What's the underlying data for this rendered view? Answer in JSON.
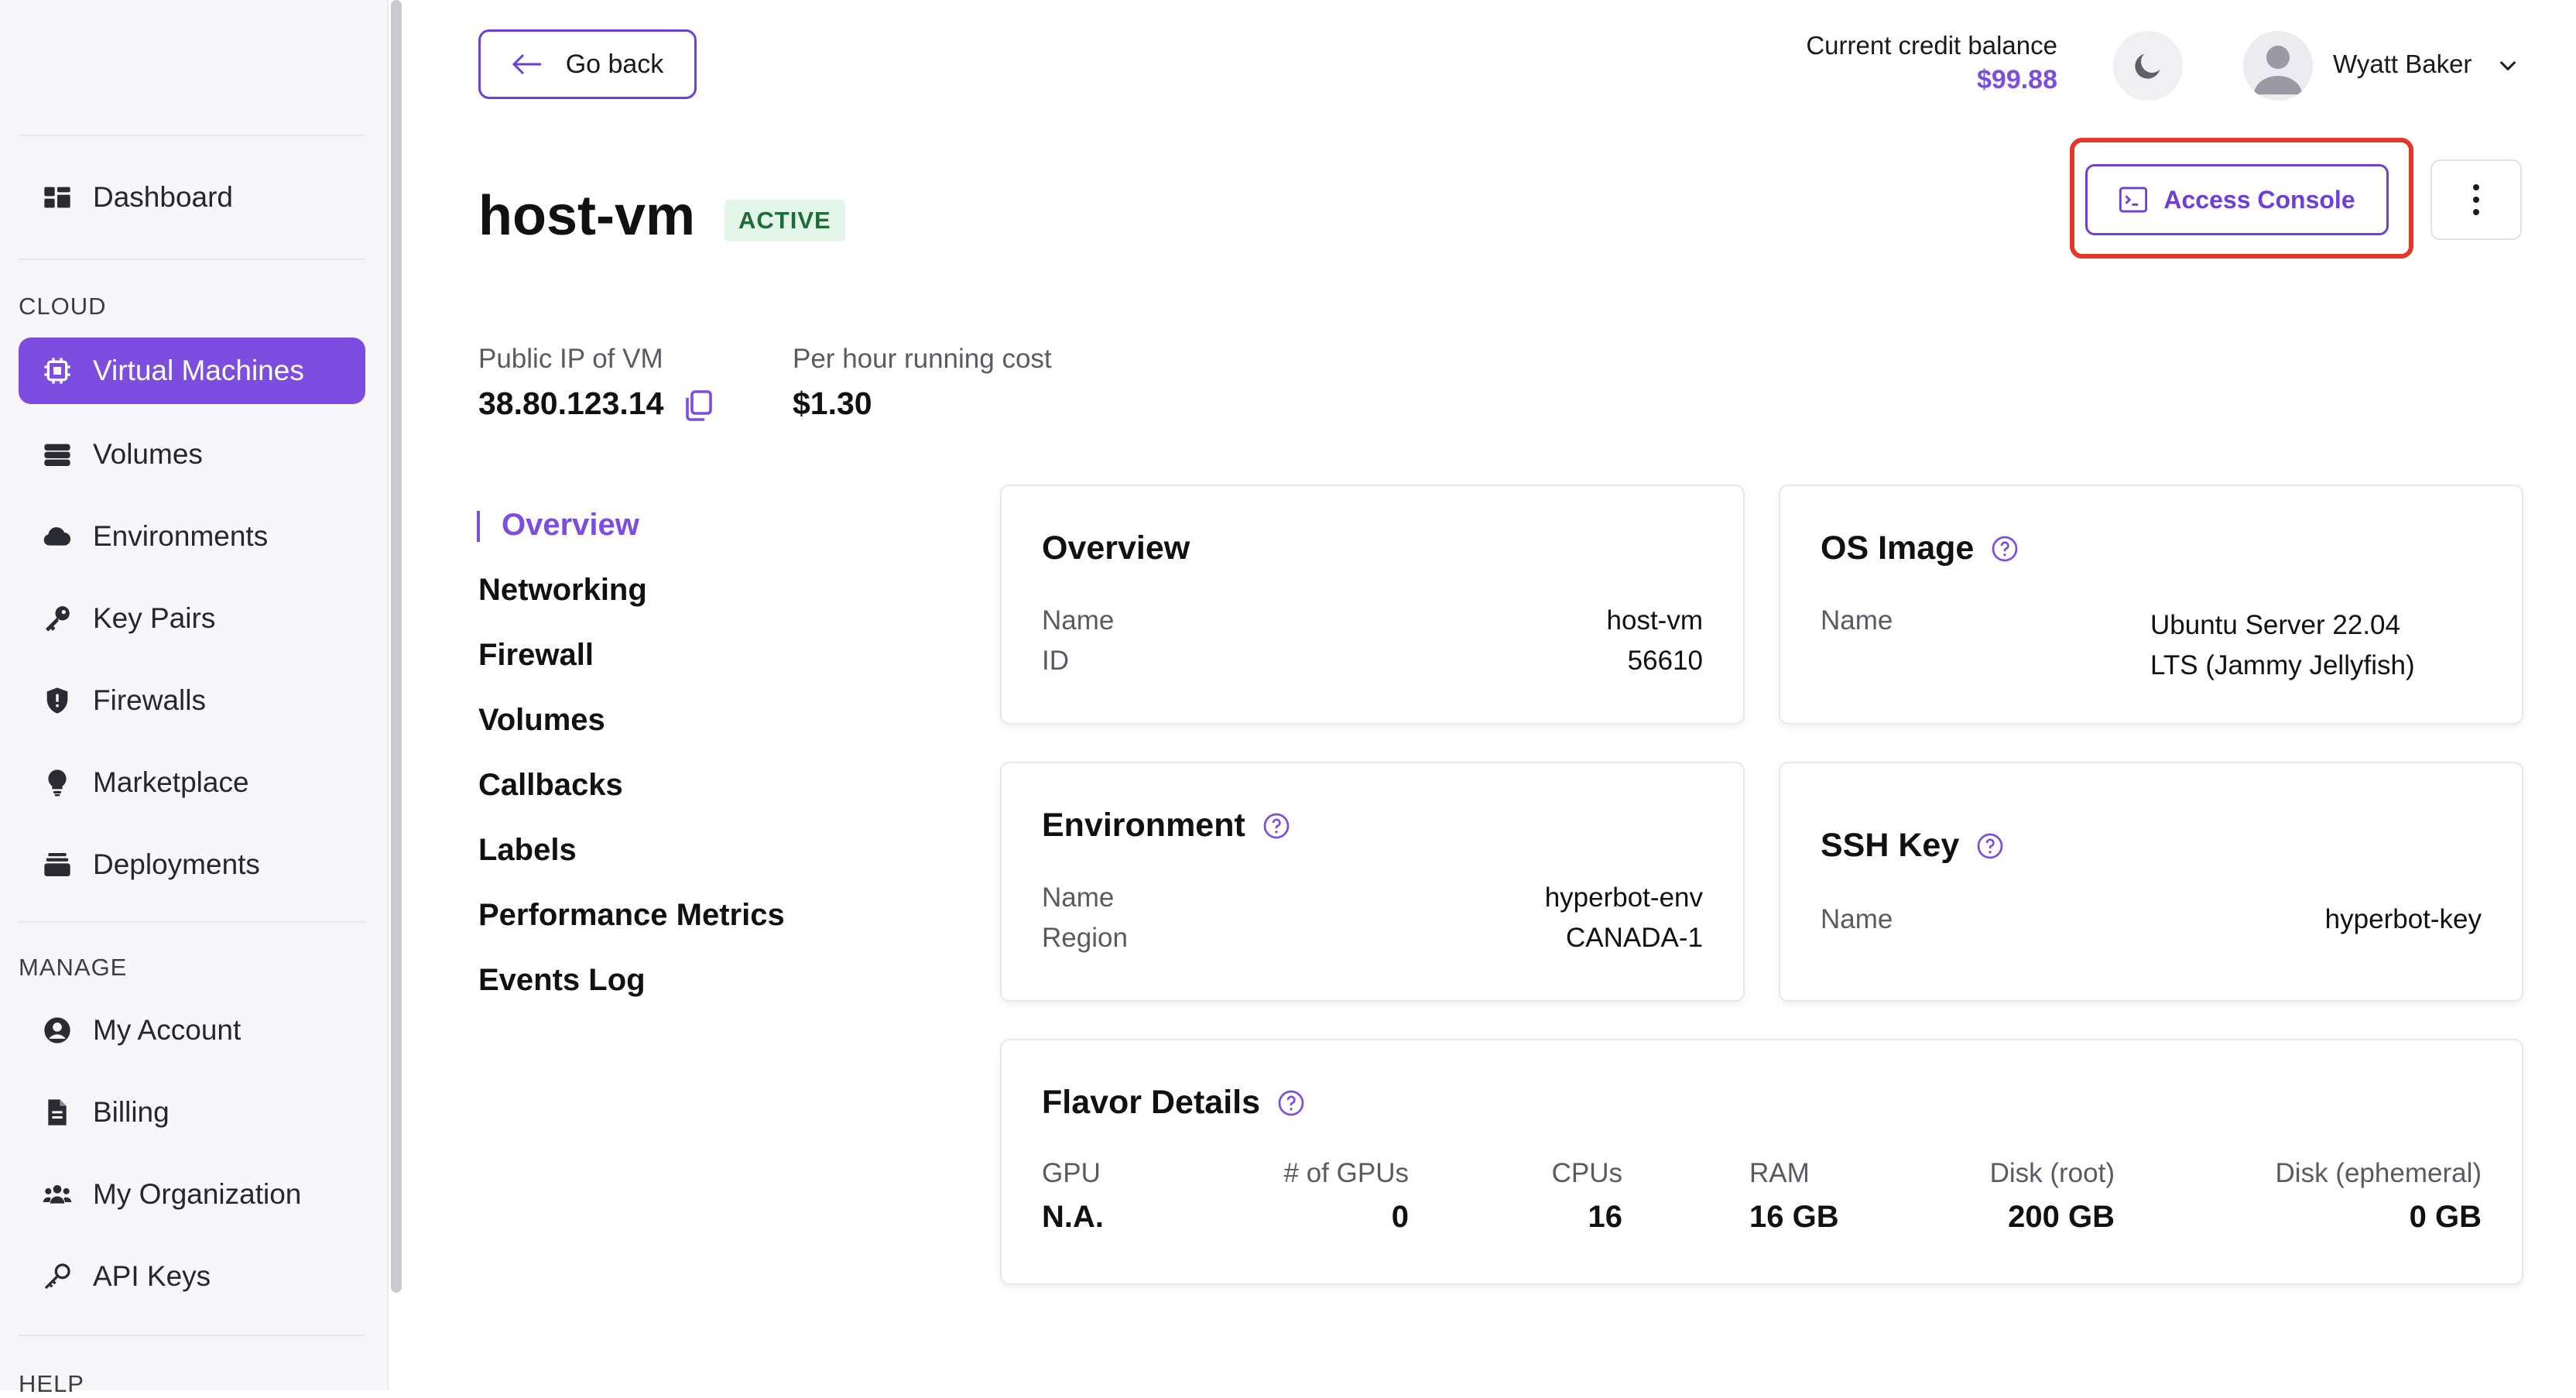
{
  "sidebar": {
    "dashboard": "Dashboard",
    "cloud_label": "CLOUD",
    "cloud_items": [
      "Virtual Machines",
      "Volumes",
      "Environments",
      "Key Pairs",
      "Firewalls",
      "Marketplace",
      "Deployments"
    ],
    "manage_label": "MANAGE",
    "manage_items": [
      "My Account",
      "Billing",
      "My Organization",
      "API Keys"
    ],
    "help_label": "HELP"
  },
  "header": {
    "go_back": "Go back",
    "credit_label": "Current credit balance",
    "credit_value": "$99.88",
    "user_name": "Wyatt Baker"
  },
  "vm": {
    "title": "host-vm",
    "status": "ACTIVE",
    "access_console": "Access Console",
    "ip_label": "Public IP of VM",
    "ip_value": "38.80.123.14",
    "cost_label": "Per hour running cost",
    "cost_value": "$1.30"
  },
  "section_nav": [
    "Overview",
    "Networking",
    "Firewall",
    "Volumes",
    "Callbacks",
    "Labels",
    "Performance Metrics",
    "Events Log"
  ],
  "overview": {
    "title": "Overview",
    "name_label": "Name",
    "name_value": "host-vm",
    "id_label": "ID",
    "id_value": "56610"
  },
  "os_image": {
    "title": "OS Image",
    "name_label": "Name",
    "name_value_line1": "Ubuntu Server 22.04",
    "name_value_line2": "LTS (Jammy Jellyfish)"
  },
  "environment": {
    "title": "Environment",
    "name_label": "Name",
    "name_value": "hyperbot-env",
    "region_label": "Region",
    "region_value": "CANADA-1"
  },
  "ssh_key": {
    "title": "SSH Key",
    "name_label": "Name",
    "name_value": "hyperbot-key"
  },
  "flavor": {
    "title": "Flavor Details",
    "columns": [
      {
        "label": "GPU",
        "value": "N.A."
      },
      {
        "label": "# of GPUs",
        "value": "0"
      },
      {
        "label": "CPUs",
        "value": "16"
      },
      {
        "label": "RAM",
        "value": "16 GB"
      },
      {
        "label": "Disk (root)",
        "value": "200 GB"
      },
      {
        "label": "Disk (ephemeral)",
        "value": "0 GB"
      }
    ]
  },
  "colors": {
    "accent": "#7c4ddf",
    "highlight": "#e2372a",
    "badge_bg": "#e3f5e9",
    "badge_text": "#1e6b3a"
  }
}
